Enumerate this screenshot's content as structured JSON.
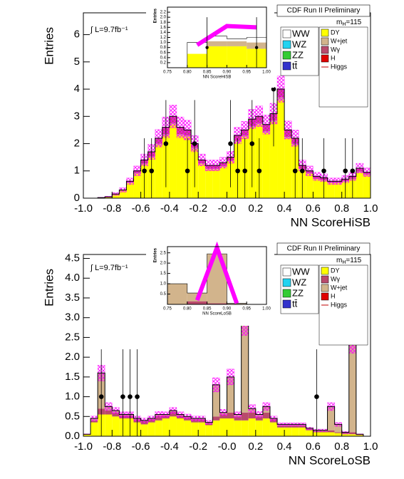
{
  "chart_data": [
    {
      "type": "histogram",
      "title": "CDF Run II Preliminary",
      "lumi": "∫ L=9.7fb⁻¹",
      "mass": {
        "symbol": "m",
        "sub": "H",
        "text": "=115"
      },
      "xlabel": "NN ScoreHiSB",
      "ylabel": "Entries",
      "xlim": [
        -1,
        1
      ],
      "ylim": [
        0,
        6.8
      ],
      "xticks": [
        {
          "value": -1,
          "label": "-1.0"
        },
        -0.8,
        -0.6,
        -0.4,
        -0.2,
        {
          "value": 0,
          "label": "-0.0"
        },
        0.2,
        0.4,
        0.6,
        0.8,
        {
          "value": 1,
          "label": "1.0"
        }
      ],
      "yticks": [
        0,
        1,
        2,
        3,
        4,
        5,
        6
      ],
      "bins": [
        -1,
        -0.95,
        -0.9,
        -0.85,
        -0.8,
        -0.75,
        -0.7,
        -0.65,
        -0.6,
        -0.55,
        -0.5,
        -0.45,
        -0.4,
        -0.35,
        -0.3,
        -0.25,
        -0.2,
        -0.15,
        -0.1,
        -0.05,
        0,
        0.05,
        0.1,
        0.15,
        0.2,
        0.25,
        0.3,
        0.35,
        0.4,
        0.45,
        0.5,
        0.55,
        0.6,
        0.65,
        0.7,
        0.75,
        0.8,
        0.85,
        0.9,
        0.95,
        1
      ],
      "series": [
        {
          "name": "DY",
          "color": "#ffff00",
          "values": [
            0,
            0,
            0.02,
            0.05,
            0.13,
            0.27,
            0.55,
            0.9,
            1.25,
            1.5,
            1.95,
            2.3,
            2.7,
            2.3,
            2.25,
            1.8,
            1.25,
            1.05,
            1.05,
            1.15,
            1.35,
            2.05,
            2.25,
            2.6,
            2.7,
            2.4,
            2.8,
            3.6,
            2.2,
            1.95,
            1.05,
            0.9,
            0.7,
            0.65,
            0.55,
            0.55,
            0.6,
            0.7,
            0.95,
            0.85
          ]
        },
        {
          "name": "W+jet",
          "color": "#d2b48c",
          "values": [
            0,
            0,
            0,
            0,
            0,
            0,
            0.02,
            0.02,
            0.03,
            0.03,
            0.05,
            0.05,
            0.05,
            0.05,
            0.05,
            0.05,
            0.03,
            0.03,
            0.03,
            0.03,
            0.03,
            0.05,
            0.05,
            0.05,
            0.05,
            0.05,
            0.05,
            0.1,
            0.05,
            0.05,
            0.03,
            0.02,
            0.02,
            0.02,
            0.02,
            0.02,
            0.02,
            0.02,
            0.03,
            0.02
          ]
        },
        {
          "name": "Wγ",
          "color": "#b94a6c",
          "values": [
            0,
            0,
            0,
            0,
            0.02,
            0.03,
            0.05,
            0.08,
            0.12,
            0.17,
            0.2,
            0.25,
            0.25,
            0.25,
            0.2,
            0.15,
            0.12,
            0.12,
            0.12,
            0.12,
            0.12,
            0.2,
            0.2,
            0.25,
            0.25,
            0.25,
            0.25,
            0.3,
            0.25,
            0.2,
            0.12,
            0.08,
            0.08,
            0.08,
            0.05,
            0.05,
            0.08,
            0.08,
            0.12,
            0.08
          ]
        }
      ],
      "uncertainty": [
        0,
        0,
        0.01,
        0.02,
        0.05,
        0.08,
        0.12,
        0.18,
        0.22,
        0.28,
        0.32,
        0.38,
        0.42,
        0.38,
        0.36,
        0.3,
        0.22,
        0.2,
        0.2,
        0.2,
        0.22,
        0.3,
        0.32,
        0.36,
        0.38,
        0.35,
        0.38,
        0.48,
        0.33,
        0.3,
        0.2,
        0.18,
        0.15,
        0.14,
        0.12,
        0.12,
        0.13,
        0.15,
        0.18,
        0.16
      ],
      "uncertainty_color": "#ff00ff",
      "data": {
        "x": [
          -0.575,
          -0.525,
          -0.425,
          -0.275,
          -0.225,
          0.025,
          0.075,
          0.125,
          0.175,
          0.225,
          0.325,
          0.475,
          0.525,
          0.675,
          0.825,
          0.875
        ],
        "values": [
          1,
          1,
          2,
          1,
          2,
          2,
          1,
          1,
          2,
          1,
          4,
          1,
          1,
          1,
          1,
          1
        ],
        "errors": [
          1.2,
          1.2,
          1.6,
          1.2,
          1.6,
          1.6,
          1.2,
          1.2,
          1.6,
          1.2,
          2.1,
          1.2,
          1.2,
          1.2,
          1.2,
          1.2
        ]
      },
      "legend_left": [
        {
          "name": "WW",
          "color": "#ffffff"
        },
        {
          "name": "WZ",
          "color": "#22d3f0"
        },
        {
          "name": "ZZ",
          "color": "#33cc33"
        },
        {
          "name": "tt̄",
          "color": "#3333cc"
        }
      ],
      "legend_extra": [
        {
          "name": "H",
          "color": "#e00000"
        },
        {
          "name": "Higgs",
          "color": "#c00000",
          "line": true
        }
      ],
      "inset": {
        "xlabel": "NN ScoreHiSB",
        "ylabel": "Entries",
        "xlim": [
          0.75,
          1
        ],
        "ylim": [
          0,
          2.4
        ],
        "xticks": [
          0.75,
          {
            "value": 0.8,
            "label": "0.80"
          },
          0.85,
          {
            "value": 0.9,
            "label": "0.90"
          },
          0.95,
          {
            "value": 1,
            "label": "1.00"
          }
        ],
        "yticks": [
          0.2,
          0.4,
          0.6,
          0.8,
          {
            "value": 1,
            "label": "1.0"
          },
          1.2,
          1.4,
          1.6,
          1.8,
          {
            "value": 2,
            "label": "2.0"
          },
          2.2
        ],
        "bins": [
          0.75,
          0.8,
          0.85,
          0.9,
          0.95,
          1
        ],
        "series": [
          {
            "color": "#ffff00",
            "values": [
              0,
              0.55,
              0.85,
              0.85,
              0.75
            ]
          },
          {
            "color": "#d2b48c",
            "values": [
              0,
              0,
              0.2,
              0.2,
              0.25
            ]
          },
          {
            "color": "#ffffff",
            "values": [
              0,
              0.45,
              0.2,
              0.1,
              0.2
            ]
          }
        ],
        "higgs": {
          "color": "#ff00ff",
          "x": [
            0.825,
            0.9,
            0.975
          ],
          "values": [
            0.9,
            1.65,
            1.6
          ]
        },
        "data": {
          "x": [
            0.85,
            0.975
          ],
          "values": [
            0.8,
            0.8
          ],
          "errors": [
            1.2,
            1.2
          ]
        }
      }
    },
    {
      "type": "histogram",
      "title": "CDF Run II Preliminary",
      "lumi": "∫ L=9.7fb⁻¹",
      "mass": {
        "symbol": "m",
        "sub": "H",
        "text": "=115"
      },
      "xlabel": "NN ScoreLoSB",
      "ylabel": "Entries",
      "xlim": [
        -1,
        1
      ],
      "ylim": [
        0,
        4.6
      ],
      "xticks": [
        {
          "value": -1,
          "label": "-1.0"
        },
        -0.8,
        -0.6,
        -0.4,
        -0.2,
        {
          "value": 0,
          "label": "-0.0"
        },
        0.2,
        0.4,
        0.6,
        0.8,
        {
          "value": 1,
          "label": "1.0"
        }
      ],
      "yticks": [
        {
          "value": 0,
          "label": "0.0"
        },
        0.5,
        {
          "value": 1,
          "label": "1.0"
        },
        1.5,
        {
          "value": 2,
          "label": "2.0"
        },
        2.5,
        {
          "value": 3,
          "label": "3.0"
        },
        3.5,
        {
          "value": 4,
          "label": "4.0"
        },
        4.5
      ],
      "bins": [
        -1,
        -0.95,
        -0.9,
        -0.85,
        -0.8,
        -0.75,
        -0.7,
        -0.65,
        -0.6,
        -0.55,
        -0.5,
        -0.45,
        -0.4,
        -0.35,
        -0.3,
        -0.25,
        -0.2,
        -0.15,
        -0.1,
        -0.05,
        0,
        0.05,
        0.1,
        0.15,
        0.2,
        0.25,
        0.3,
        0.35,
        0.4,
        0.45,
        0.5,
        0.55,
        0.6,
        0.65,
        0.7,
        0.75,
        0.8,
        0.85,
        0.9,
        0.95,
        1
      ],
      "series": [
        {
          "name": "DY",
          "color": "#ffff00",
          "values": [
            0.05,
            0.35,
            0.55,
            0.55,
            0.5,
            0.45,
            0.45,
            0.35,
            0.3,
            0.35,
            0.4,
            0.45,
            0.5,
            0.45,
            0.4,
            0.35,
            0.35,
            0.28,
            0.4,
            0.45,
            0.45,
            0.4,
            0.4,
            0.45,
            0.4,
            0.45,
            0.35,
            0.22,
            0.22,
            0.22,
            0.22,
            0.15,
            0.1,
            0.1,
            0.1,
            0.08,
            0.05,
            0.05,
            0.03,
            0
          ]
        },
        {
          "name": "Wγ",
          "color": "#b94a6c",
          "values": [
            0,
            0.05,
            0.15,
            0.1,
            0.1,
            0.08,
            0.08,
            0.08,
            0.08,
            0.08,
            0.12,
            0.08,
            0.12,
            0.08,
            0.08,
            0.08,
            0.08,
            0.05,
            0.1,
            0.1,
            0.15,
            0.1,
            0.2,
            0.15,
            0.1,
            0.15,
            0.08,
            0.05,
            0.05,
            0.05,
            0.05,
            0.03,
            0.03,
            0.03,
            0.05,
            0.02,
            0.03,
            0.05,
            0.01,
            0
          ]
        },
        {
          "name": "W+jet",
          "color": "#d2b48c",
          "values": [
            0,
            0.05,
            0.9,
            0.1,
            0.05,
            0.02,
            0.02,
            0.02,
            0.02,
            0.02,
            0.03,
            0.02,
            0.03,
            0.02,
            0.02,
            0.02,
            0.02,
            0.02,
            0.8,
            0.05,
            0.9,
            0.05,
            2.3,
            0.1,
            0.05,
            0.15,
            0.02,
            0.03,
            0.03,
            0.03,
            0.03,
            0.02,
            0.02,
            0.02,
            0.6,
            0.2,
            0.02,
            2.3,
            0.01,
            0
          ]
        }
      ],
      "uncertainty": [
        0.01,
        0.06,
        0.2,
        0.1,
        0.08,
        0.07,
        0.07,
        0.06,
        0.06,
        0.06,
        0.08,
        0.07,
        0.08,
        0.07,
        0.06,
        0.06,
        0.06,
        0.05,
        0.18,
        0.08,
        0.2,
        0.07,
        0.35,
        0.1,
        0.08,
        0.1,
        0.06,
        0.04,
        0.04,
        0.04,
        0.04,
        0.03,
        0.03,
        0.03,
        0.1,
        0.05,
        0.02,
        0.3,
        0.01,
        0
      ],
      "uncertainty_color": "#ff00ff",
      "data": {
        "x": [
          -0.875,
          -0.725,
          -0.675,
          -0.625,
          0.625
        ],
        "values": [
          1,
          1,
          1,
          1,
          1
        ],
        "errors": [
          1.2,
          1.2,
          1.2,
          1.2,
          1.2
        ]
      },
      "legend_left": [
        {
          "name": "WW",
          "color": "#ffffff"
        },
        {
          "name": "WZ",
          "color": "#22d3f0"
        },
        {
          "name": "ZZ",
          "color": "#33cc33"
        },
        {
          "name": "tt̄",
          "color": "#3333cc"
        }
      ],
      "legend_extra": [
        {
          "name": "H",
          "color": "#e00000"
        },
        {
          "name": "Higgs",
          "color": "#c00000",
          "line": true
        }
      ],
      "inset": {
        "xlabel": "NN ScoreLoSB",
        "ylabel": "Entries",
        "xlim": [
          0.75,
          1
        ],
        "ylim": [
          0,
          2.8
        ],
        "xticks": [
          0.75,
          {
            "value": 0.8,
            "label": "0.80"
          },
          0.85,
          {
            "value": 0.9,
            "label": "0.90"
          },
          0.95,
          {
            "value": 1,
            "label": "1.00"
          }
        ],
        "yticks": [
          0.5,
          {
            "value": 1,
            "label": "1.0"
          },
          1.5,
          {
            "value": 2,
            "label": "2.0"
          },
          2.5
        ],
        "bins": [
          0.75,
          0.8,
          0.85,
          0.9,
          0.95,
          1
        ],
        "series": [
          {
            "color": "#b94a6c",
            "values": [
              0,
              0.15,
              0.05,
              0.02,
              0
            ]
          },
          {
            "color": "#d2b48c",
            "values": [
              1,
              0.4,
              2.4,
              0.03,
              0
            ]
          }
        ],
        "higgs": {
          "color": "#ff00ff",
          "x": [
            0.825,
            0.875,
            0.925
          ],
          "values": [
            0.2,
            2.75,
            0.05
          ]
        }
      }
    }
  ]
}
